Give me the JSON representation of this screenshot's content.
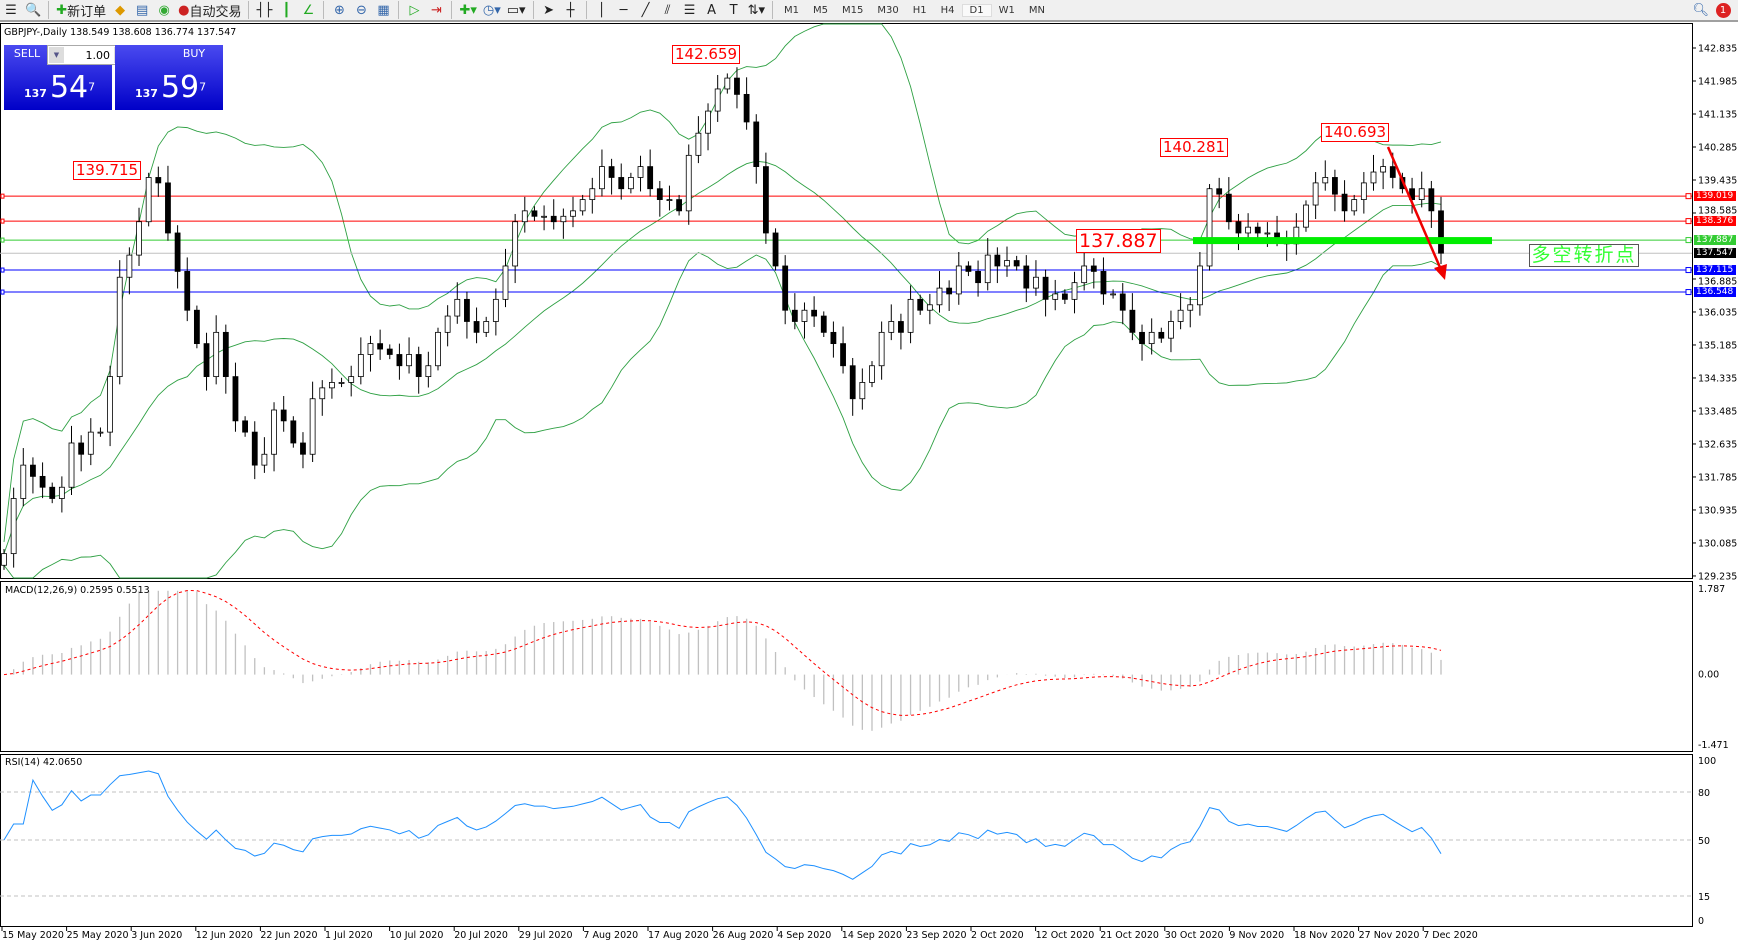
{
  "toolbar": {
    "new_order": "新订单",
    "auto_trading": "自动交易",
    "timeframes": [
      "M1",
      "M5",
      "M15",
      "M30",
      "H1",
      "H4",
      "D1",
      "W1",
      "MN"
    ],
    "active_timeframe": "D1",
    "notification_count": "1"
  },
  "chart": {
    "title": "GBPJPY-,Daily  138.549 138.608 136.774 137.547"
  },
  "trade_panel": {
    "sell_label": "SELL",
    "buy_label": "BUY",
    "lot": "1.00",
    "sell_big": "137",
    "sell_main": "54",
    "sell_sup": "7",
    "buy_big": "137",
    "buy_main": "59",
    "buy_sup": "7"
  },
  "price_axis": [
    "142.835",
    "141.985",
    "141.135",
    "140.285",
    "139.435",
    "138.585",
    "136.885",
    "136.035",
    "135.185",
    "134.335",
    "133.485",
    "132.635",
    "131.785",
    "130.935",
    "130.085",
    "129.235"
  ],
  "levels": [
    {
      "price": "139.019",
      "color": "#ff0000"
    },
    {
      "price": "138.376",
      "color": "#ff0000"
    },
    {
      "price": "137.887",
      "color": "#33cc33"
    },
    {
      "price": "137.547",
      "color": "#000000"
    },
    {
      "price": "137.115",
      "color": "#0000ff"
    },
    {
      "price": "136.548",
      "color": "#0000ff"
    }
  ],
  "annotations": {
    "peak_jun": "139.715",
    "peak_aug": "142.659",
    "peak_nov": "140.281",
    "peak_dec": "140.693",
    "pivot": "137.887",
    "pivot_text": "多空转折点"
  },
  "macd": {
    "title": "MACD(12,26,9) 0.2595 0.5513",
    "axis": [
      "1.787",
      "0.00",
      "-1.471"
    ]
  },
  "rsi": {
    "title": "RSI(14) 42.0650",
    "axis": [
      "100",
      "80",
      "50",
      "15",
      "0"
    ]
  },
  "dates": [
    "15 May 2020",
    "25 May 2020",
    "3 Jun 2020",
    "12 Jun 2020",
    "22 Jun 2020",
    "1 Jul 2020",
    "10 Jul 2020",
    "20 Jul 2020",
    "29 Jul 2020",
    "7 Aug 2020",
    "17 Aug 2020",
    "26 Aug 2020",
    "4 Sep 2020",
    "14 Sep 2020",
    "23 Sep 2020",
    "2 Oct 2020",
    "12 Oct 2020",
    "21 Oct 2020",
    "30 Oct 2020",
    "9 Nov 2020",
    "18 Nov 2020",
    "27 Nov 2020",
    "7 Dec 2020"
  ],
  "chart_data": {
    "type": "candlestick",
    "symbol": "GBPJPY",
    "timeframe": "Daily",
    "ylim": [
      129.235,
      142.835
    ],
    "indicators": [
      "Bollinger Bands",
      "MACD(12,26,9)",
      "RSI(14)"
    ],
    "close": [
      129.81,
      131.23,
      132.09,
      131.8,
      131.52,
      131.23,
      131.52,
      132.66,
      132.37,
      132.94,
      132.94,
      134.37,
      136.93,
      137.5,
      138.36,
      139.5,
      139.36,
      138.07,
      137.08,
      136.08,
      135.22,
      134.37,
      135.51,
      134.37,
      133.23,
      132.94,
      132.09,
      132.37,
      133.51,
      133.23,
      132.66,
      132.37,
      133.8,
      134.08,
      134.22,
      134.22,
      134.37,
      134.94,
      135.22,
      135.08,
      134.94,
      134.65,
      134.94,
      134.37,
      134.65,
      135.51,
      135.93,
      136.36,
      135.79,
      135.51,
      135.79,
      136.36,
      137.22,
      138.36,
      138.64,
      138.5,
      138.5,
      138.36,
      138.5,
      138.64,
      138.93,
      139.21,
      139.78,
      139.5,
      139.21,
      139.5,
      139.78,
      139.21,
      138.93,
      138.93,
      138.64,
      140.07,
      140.64,
      141.21,
      141.78,
      142.06,
      141.64,
      140.93,
      139.78,
      138.07,
      137.22,
      136.08,
      135.79,
      136.08,
      135.93,
      135.51,
      135.22,
      134.65,
      133.8,
      134.22,
      134.65,
      135.51,
      135.79,
      135.51,
      136.36,
      136.08,
      136.22,
      136.65,
      136.5,
      137.22,
      137.08,
      136.79,
      137.5,
      137.22,
      137.36,
      137.22,
      136.65,
      136.93,
      136.36,
      136.5,
      136.36,
      136.79,
      137.22,
      137.08,
      136.5,
      136.5,
      136.08,
      135.51,
      135.22,
      135.51,
      135.36,
      135.79,
      136.08,
      136.22,
      137.22,
      139.21,
      139.07,
      138.36,
      138.07,
      138.22,
      138.07,
      138.07,
      137.93,
      137.79,
      138.22,
      138.79,
      139.36,
      139.5,
      139.07,
      138.64,
      138.93,
      139.36,
      139.64,
      139.78,
      139.5,
      139.21,
      138.93,
      139.21,
      138.64,
      137.55
    ]
  }
}
